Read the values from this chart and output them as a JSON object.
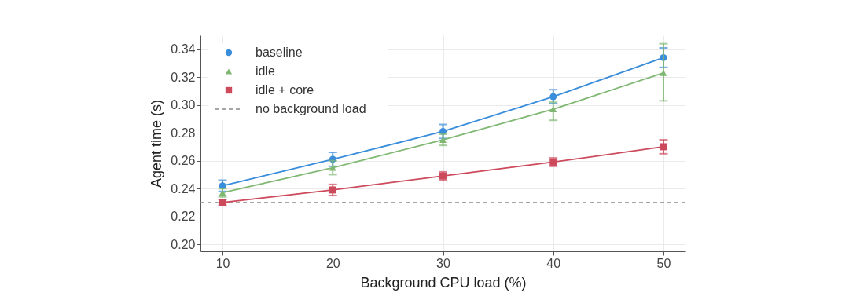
{
  "chart_data": {
    "type": "line",
    "xlabel": "Background CPU load (%)",
    "ylabel": "Agent time (s)",
    "x": [
      10,
      20,
      30,
      40,
      50
    ],
    "series": [
      {
        "name": "baseline",
        "color": "#3a8ddb",
        "marker": "circle",
        "values": [
          0.242,
          0.261,
          0.281,
          0.306,
          0.334
        ],
        "errors": [
          0.004,
          0.005,
          0.005,
          0.005,
          0.007
        ]
      },
      {
        "name": "idle",
        "color": "#80b873",
        "marker": "triangle",
        "values": [
          0.237,
          0.255,
          0.275,
          0.297,
          0.323
        ],
        "errors": [
          0.003,
          0.005,
          0.004,
          [
            0.289,
            0.302
          ],
          [
            0.303,
            0.344
          ]
        ]
      },
      {
        "name": "idle + core",
        "color": "#cc4a5c",
        "marker": "square",
        "values": [
          0.23,
          0.239,
          0.249,
          0.259,
          0.27
        ],
        "errors": [
          0.002,
          0.004,
          0.003,
          0.003,
          0.005
        ]
      }
    ],
    "ref_lines": [
      {
        "axis": "y",
        "value": 0.23,
        "label": "no background load",
        "color": "#888888",
        "line_style": "dashed"
      }
    ],
    "xlim": [
      8,
      52
    ],
    "xticks": [
      10,
      20,
      30,
      40,
      50
    ],
    "ylim": [
      0.195,
      0.35
    ],
    "yticks": [
      {
        "value": 0.2,
        "label": "0.20"
      },
      0.22,
      0.24,
      0.26,
      0.28,
      {
        "value": 0.3,
        "label": "0.30"
      },
      0.32,
      0.34
    ],
    "grid": true,
    "legend": "top left"
  }
}
